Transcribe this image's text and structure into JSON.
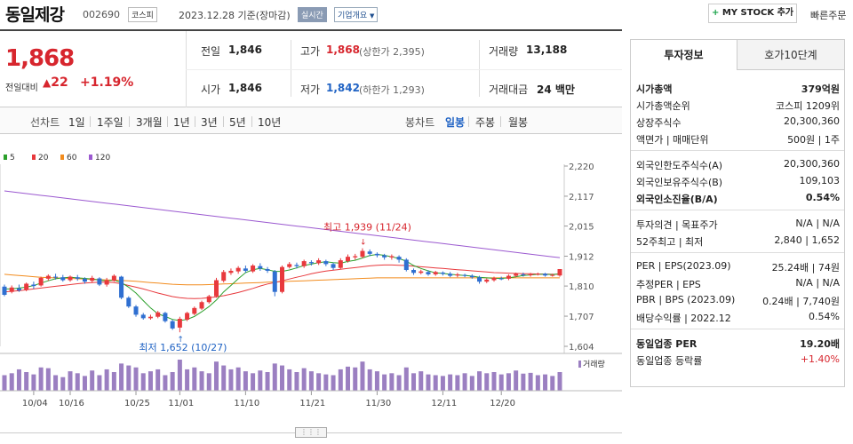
{
  "header": {
    "name": "동일제강",
    "code": "002690",
    "market": "코스피",
    "date": "2023.12.28 기준(장마감)",
    "realtime": "실시간",
    "overview": "기업개요",
    "mystock": "MY STOCK 추가",
    "quick_order": "빠른주문"
  },
  "summary": {
    "price": "1,868",
    "change_label": "전일대비",
    "change_value": "22",
    "change_pct": "+1.19%",
    "prev_label": "전일",
    "prev": "1,846",
    "high_label": "고가",
    "high": "1,868",
    "upper_limit": "(상한가 2,395)",
    "volume_label": "거래량",
    "volume": "13,188",
    "open_label": "시가",
    "open": "1,846",
    "low_label": "저가",
    "low": "1,842",
    "lower_limit": "(하한가 1,293)",
    "amount_label": "거래대금",
    "amount": "24 백만"
  },
  "period": {
    "line_label": "선차트",
    "line_items": [
      "1일",
      "1주일",
      "3개월",
      "1년",
      "3년",
      "5년",
      "10년"
    ],
    "candle_label": "봉차트",
    "candle_items": [
      "일봉",
      "주봉",
      "월봉"
    ]
  },
  "chart_data": {
    "type": "candlestick",
    "legend": [
      {
        "name": "5",
        "color": "#2ca02c"
      },
      {
        "name": "20",
        "color": "#e8393d"
      },
      {
        "name": "60",
        "color": "#f28c1e"
      },
      {
        "name": "120",
        "color": "#9b59d0"
      }
    ],
    "y_ticks": [
      "2,220",
      "2,117",
      "2,015",
      "1,912",
      "1,810",
      "1,707",
      "1,604"
    ],
    "ylim": [
      1604,
      2220
    ],
    "x_labels": [
      "10/04",
      "10/16",
      "10/25",
      "11/01",
      "11/10",
      "11/21",
      "11/30",
      "12/11",
      "12/20"
    ],
    "high_note": "최고 1,939 (11/24)",
    "low_note": "최저 1,652 (10/27)",
    "volume_label": "거래량",
    "candles": [
      [
        1808,
        1780,
        1815,
        1775
      ],
      [
        1790,
        1805,
        1812,
        1785
      ],
      [
        1802,
        1795,
        1815,
        1790
      ],
      [
        1798,
        1818,
        1822,
        1792
      ],
      [
        1815,
        1810,
        1825,
        1800
      ],
      [
        1812,
        1838,
        1842,
        1808
      ],
      [
        1835,
        1845,
        1850,
        1828
      ],
      [
        1842,
        1840,
        1852,
        1832
      ],
      [
        1840,
        1830,
        1848,
        1825
      ],
      [
        1830,
        1842,
        1846,
        1825
      ],
      [
        1840,
        1835,
        1848,
        1828
      ],
      [
        1835,
        1825,
        1840,
        1818
      ],
      [
        1828,
        1838,
        1845,
        1822
      ],
      [
        1836,
        1815,
        1840,
        1810
      ],
      [
        1815,
        1830,
        1838,
        1808
      ],
      [
        1828,
        1845,
        1850,
        1825
      ],
      [
        1842,
        1770,
        1845,
        1765
      ],
      [
        1770,
        1740,
        1775,
        1735
      ],
      [
        1740,
        1712,
        1745,
        1705
      ],
      [
        1712,
        1700,
        1718,
        1695
      ],
      [
        1700,
        1705,
        1712,
        1695
      ],
      [
        1705,
        1720,
        1725,
        1700
      ],
      [
        1718,
        1690,
        1722,
        1685
      ],
      [
        1690,
        1665,
        1695,
        1660
      ],
      [
        1668,
        1698,
        1705,
        1652
      ],
      [
        1695,
        1718,
        1722,
        1690
      ],
      [
        1715,
        1735,
        1740,
        1710
      ],
      [
        1733,
        1755,
        1760,
        1728
      ],
      [
        1755,
        1775,
        1780,
        1750
      ],
      [
        1775,
        1830,
        1838,
        1770
      ],
      [
        1828,
        1858,
        1865,
        1822
      ],
      [
        1855,
        1862,
        1870,
        1848
      ],
      [
        1860,
        1872,
        1878,
        1852
      ],
      [
        1870,
        1862,
        1880,
        1855
      ],
      [
        1860,
        1880,
        1885,
        1855
      ],
      [
        1878,
        1870,
        1888,
        1862
      ],
      [
        1868,
        1862,
        1875,
        1855
      ],
      [
        1860,
        1790,
        1865,
        1775
      ],
      [
        1790,
        1875,
        1880,
        1785
      ],
      [
        1875,
        1885,
        1892,
        1870
      ],
      [
        1882,
        1878,
        1890,
        1870
      ],
      [
        1878,
        1895,
        1900,
        1872
      ],
      [
        1892,
        1888,
        1898,
        1880
      ],
      [
        1888,
        1898,
        1905,
        1882
      ],
      [
        1895,
        1885,
        1900,
        1878
      ],
      [
        1885,
        1872,
        1890,
        1865
      ],
      [
        1872,
        1898,
        1905,
        1868
      ],
      [
        1895,
        1910,
        1918,
        1890
      ],
      [
        1908,
        1912,
        1920,
        1900
      ],
      [
        1910,
        1930,
        1939,
        1905
      ],
      [
        1928,
        1920,
        1935,
        1912
      ],
      [
        1920,
        1915,
        1925,
        1908
      ],
      [
        1915,
        1908,
        1920,
        1900
      ],
      [
        1908,
        1912,
        1918,
        1900
      ],
      [
        1910,
        1900,
        1915,
        1890
      ],
      [
        1900,
        1865,
        1905,
        1860
      ],
      [
        1865,
        1855,
        1870,
        1848
      ],
      [
        1855,
        1860,
        1866,
        1850
      ],
      [
        1858,
        1850,
        1864,
        1845
      ],
      [
        1850,
        1858,
        1862,
        1845
      ],
      [
        1856,
        1852,
        1860,
        1846
      ],
      [
        1852,
        1845,
        1858,
        1840
      ],
      [
        1846,
        1850,
        1855,
        1840
      ],
      [
        1848,
        1845,
        1852,
        1840
      ],
      [
        1845,
        1840,
        1850,
        1835
      ],
      [
        1840,
        1825,
        1845,
        1818
      ],
      [
        1825,
        1832,
        1836,
        1820
      ],
      [
        1830,
        1838,
        1842,
        1825
      ],
      [
        1836,
        1835,
        1842,
        1830
      ],
      [
        1835,
        1845,
        1850,
        1830
      ],
      [
        1845,
        1852,
        1856,
        1840
      ],
      [
        1850,
        1848,
        1856,
        1842
      ],
      [
        1848,
        1850,
        1855,
        1842
      ],
      [
        1850,
        1852,
        1856,
        1846
      ],
      [
        1852,
        1846,
        1855,
        1842
      ],
      [
        1846,
        1848,
        1852,
        1842
      ],
      [
        1846,
        1868,
        1868,
        1842
      ]
    ],
    "volumes": [
      40,
      45,
      55,
      48,
      42,
      60,
      58,
      40,
      35,
      50,
      45,
      38,
      52,
      40,
      55,
      48,
      70,
      65,
      60,
      45,
      50,
      55,
      40,
      48,
      80,
      55,
      60,
      50,
      45,
      75,
      65,
      55,
      60,
      50,
      45,
      52,
      48,
      70,
      65,
      55,
      48,
      58,
      50,
      45,
      42,
      40,
      55,
      62,
      60,
      75,
      55,
      50,
      42,
      45,
      40,
      60,
      45,
      50,
      42,
      40,
      38,
      42,
      40,
      45,
      38,
      50,
      45,
      48,
      42,
      45,
      52,
      44,
      46,
      40,
      42,
      38,
      48
    ],
    "ma5": [
      1800,
      1800,
      1803,
      1806,
      1812,
      1820,
      1828,
      1835,
      1838,
      1840,
      1838,
      1836,
      1834,
      1830,
      1828,
      1830,
      1822,
      1806,
      1786,
      1760,
      1735,
      1715,
      1706,
      1696,
      1692,
      1696,
      1706,
      1722,
      1740,
      1762,
      1790,
      1812,
      1835,
      1856,
      1866,
      1870,
      1866,
      1860,
      1860,
      1865,
      1872,
      1880,
      1885,
      1890,
      1893,
      1890,
      1888,
      1894,
      1898,
      1906,
      1914,
      1918,
      1915,
      1910,
      1904,
      1895,
      1880,
      1870,
      1862,
      1855,
      1853,
      1850,
      1848,
      1846,
      1844,
      1840,
      1838,
      1836,
      1836,
      1838,
      1842,
      1846,
      1848,
      1850,
      1850,
      1849,
      1852
    ],
    "ma20": [
      1790,
      1792,
      1794,
      1797,
      1800,
      1803,
      1806,
      1809,
      1812,
      1815,
      1818,
      1820,
      1822,
      1823,
      1823,
      1822,
      1818,
      1812,
      1806,
      1800,
      1793,
      1786,
      1780,
      1774,
      1770,
      1768,
      1767,
      1768,
      1770,
      1773,
      1777,
      1782,
      1788,
      1795,
      1802,
      1810,
      1817,
      1822,
      1828,
      1834,
      1840,
      1846,
      1852,
      1857,
      1861,
      1864,
      1867,
      1870,
      1873,
      1876,
      1879,
      1881,
      1882,
      1882,
      1881,
      1880,
      1878,
      1876,
      1874,
      1872,
      1870,
      1868,
      1866,
      1864,
      1862,
      1860,
      1858,
      1856,
      1855,
      1854,
      1853,
      1852,
      1852,
      1851,
      1851,
      1850,
      1850
    ],
    "ma60": [
      1850,
      1848,
      1846,
      1844,
      1842,
      1840,
      1839,
      1838,
      1837,
      1836,
      1835,
      1834,
      1833,
      1832,
      1831,
      1830,
      1829,
      1828,
      1826,
      1824,
      1822,
      1820,
      1818,
      1816,
      1815,
      1814,
      1814,
      1814,
      1815,
      1816,
      1817,
      1818,
      1819,
      1820,
      1821,
      1822,
      1823,
      1824,
      1825,
      1826,
      1827,
      1828,
      1829,
      1830,
      1831,
      1832,
      1833,
      1834,
      1835,
      1836,
      1837,
      1838,
      1838,
      1838,
      1838,
      1838,
      1838,
      1838,
      1838,
      1838,
      1838,
      1838,
      1838,
      1838,
      1838,
      1838,
      1838,
      1838,
      1838,
      1838,
      1838,
      1838,
      1838,
      1838,
      1838,
      1838,
      1838
    ],
    "ma120": [
      2135,
      2132,
      2129,
      2126,
      2123,
      2120,
      2117,
      2114,
      2111,
      2108,
      2105,
      2102,
      2099,
      2096,
      2093,
      2090,
      2087,
      2084,
      2081,
      2078,
      2075,
      2072,
      2069,
      2066,
      2063,
      2060,
      2057,
      2054,
      2051,
      2048,
      2045,
      2042,
      2039,
      2036,
      2033,
      2030,
      2027,
      2024,
      2021,
      2018,
      2015,
      2012,
      2009,
      2006,
      2003,
      2000,
      1997,
      1994,
      1991,
      1988,
      1985,
      1982,
      1979,
      1976,
      1973,
      1970,
      1967,
      1964,
      1961,
      1958,
      1955,
      1952,
      1949,
      1946,
      1943,
      1940,
      1937,
      1934,
      1931,
      1928,
      1925,
      1922,
      1919,
      1916,
      1913,
      1910,
      1907
    ]
  },
  "invest": {
    "tab_info": "투자정보",
    "tab_quote": "호가10단계",
    "g1": [
      [
        "시가총액",
        "379억원",
        true
      ],
      [
        "시가총액순위",
        "코스피 1209위",
        false
      ],
      [
        "상장주식수",
        "20,300,360",
        false
      ],
      [
        "액면가 | 매매단위",
        "500원 | 1주",
        false
      ]
    ],
    "g2": [
      [
        "외국인한도주식수(A)",
        "20,300,360",
        false
      ],
      [
        "외국인보유주식수(B)",
        "109,103",
        false
      ],
      [
        "외국인소진율(B/A)",
        "0.54%",
        true
      ]
    ],
    "g3": [
      [
        "투자의견 | 목표주가",
        "N/A | N/A",
        false
      ],
      [
        "52주최고 | 최저",
        "2,840 | 1,652",
        false
      ]
    ],
    "g4": [
      [
        "PER | EPS(2023.09)",
        "25.24배 | 74원",
        false
      ],
      [
        "추정PER | EPS",
        "N/A | N/A",
        false
      ],
      [
        "PBR | BPS (2023.09)",
        "0.24배 | 7,740원",
        false
      ],
      [
        "배당수익률 | 2022.12",
        "0.54%",
        false
      ]
    ],
    "g5": [
      [
        "동일업종 PER",
        "19.20배",
        true
      ],
      [
        "동일업종 등락률",
        "+1.40%",
        false
      ]
    ]
  }
}
